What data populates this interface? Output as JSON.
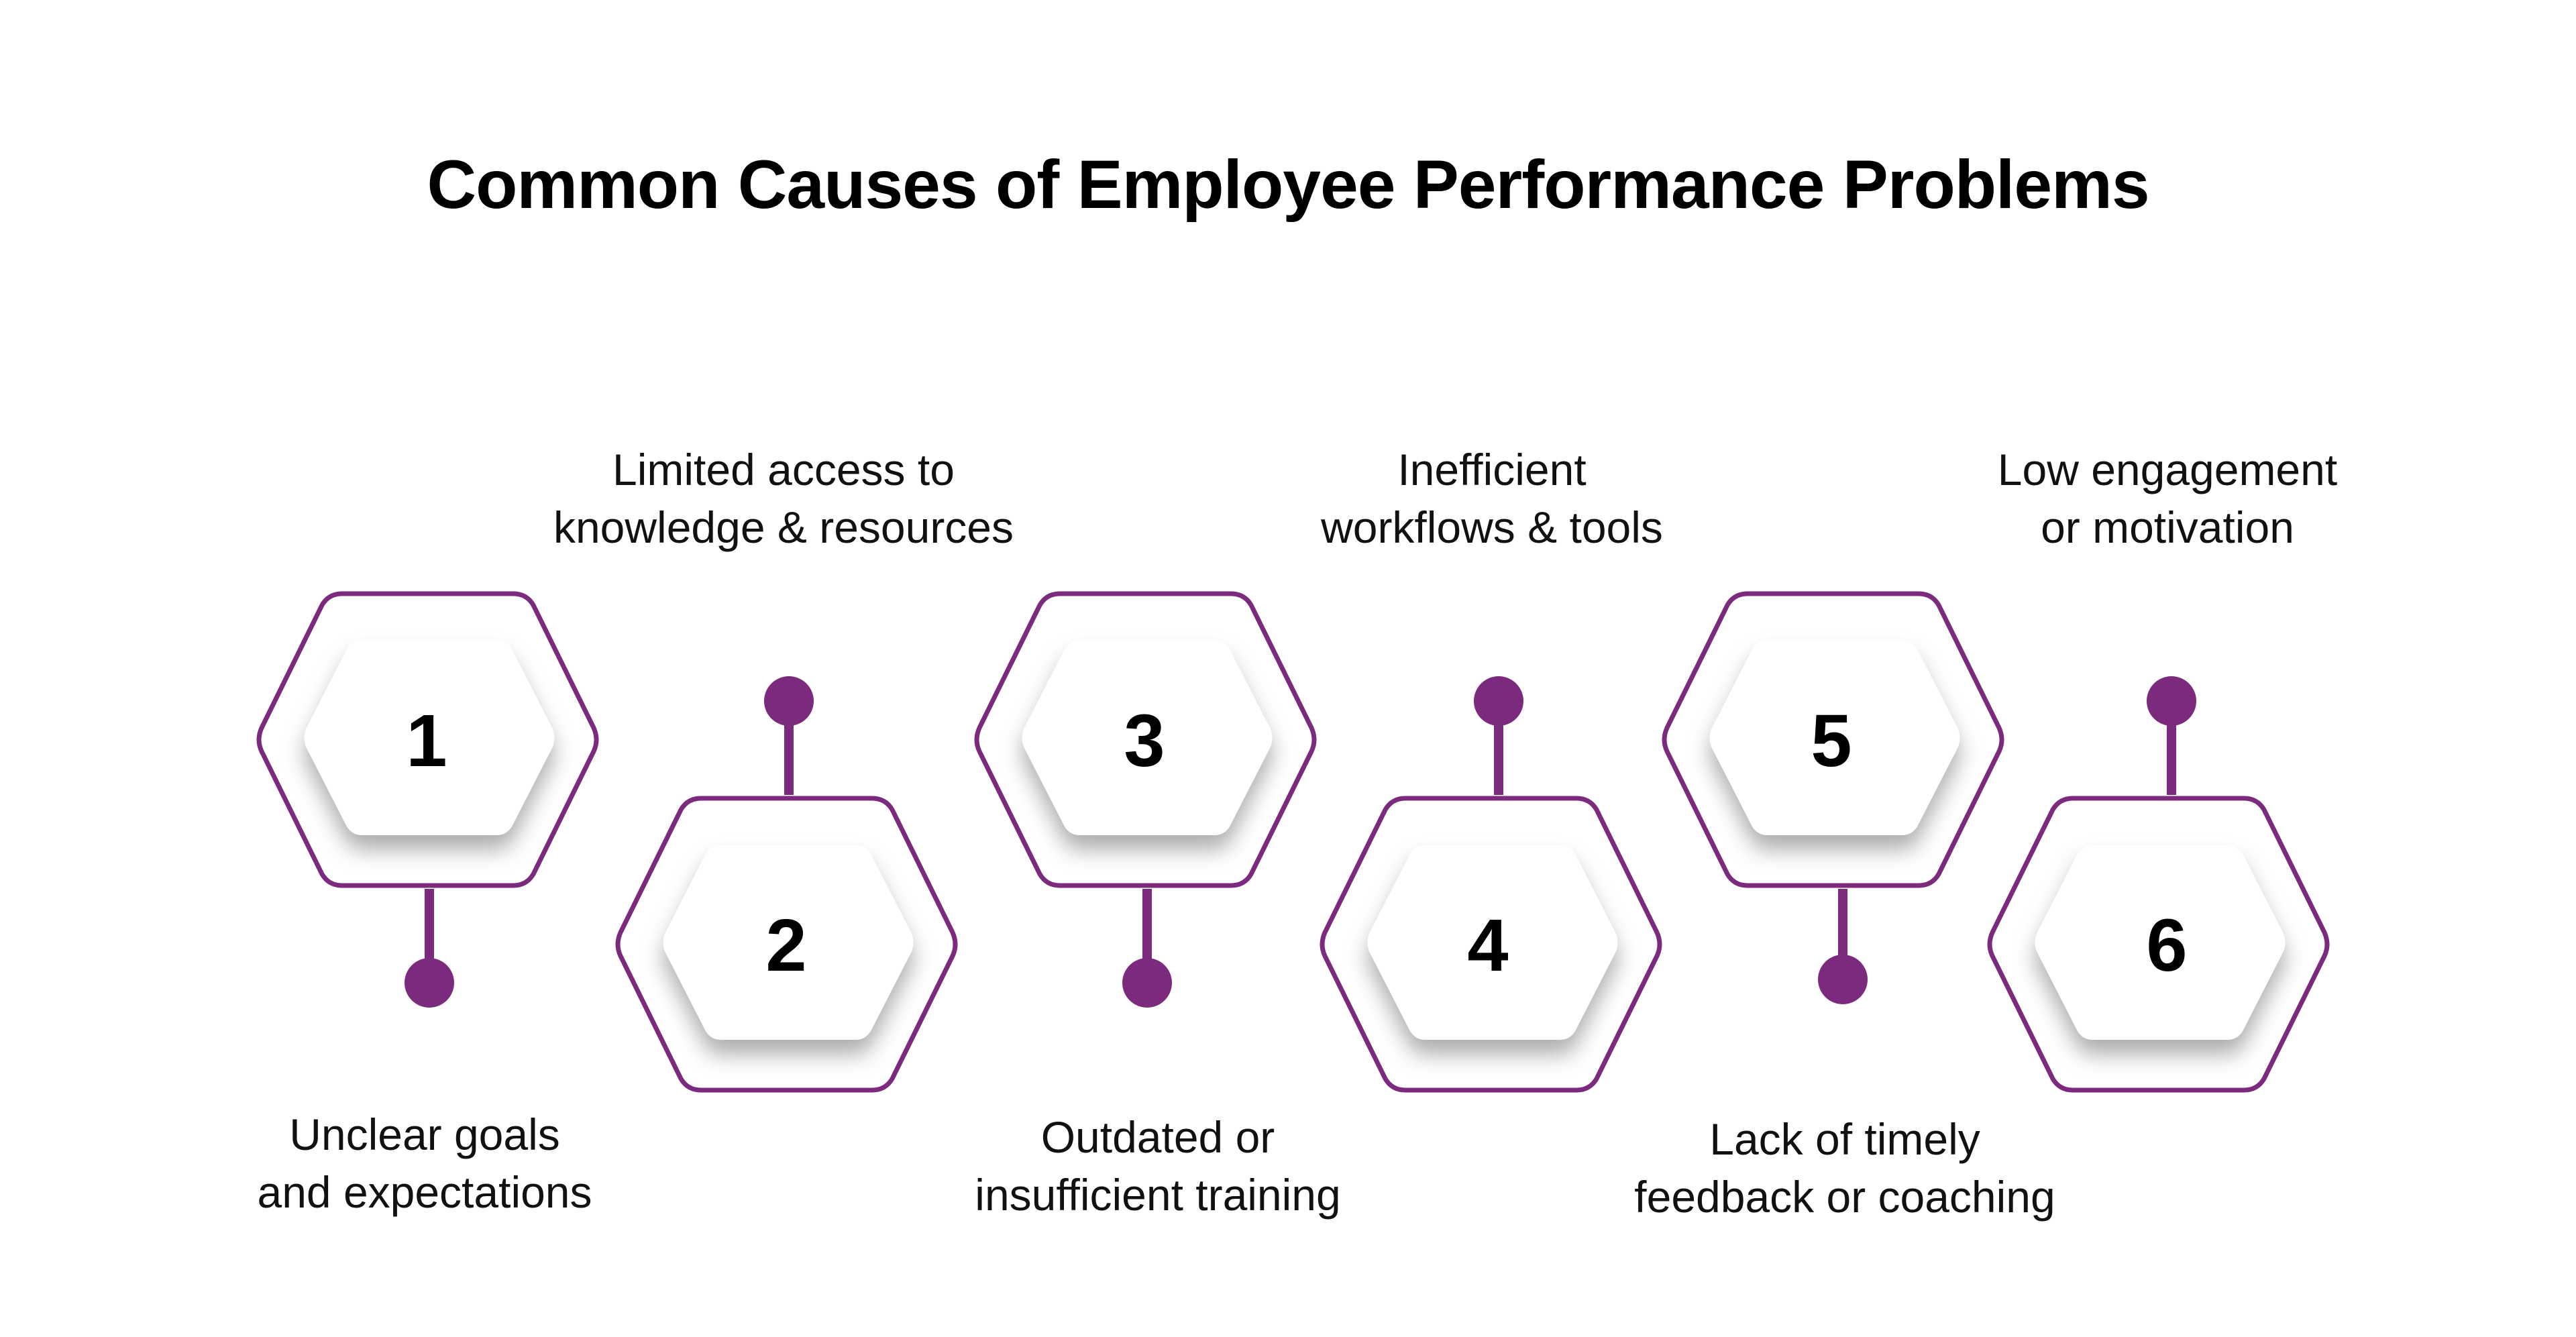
{
  "title": "Common Causes of Employee Performance Problems",
  "colors": {
    "accent": "#7b2a7e",
    "hex_fill": "#ffffff",
    "text": "#000000"
  },
  "steps": [
    {
      "number": "1",
      "label_line1": "Unclear goals",
      "label_line2": "and expectations"
    },
    {
      "number": "2",
      "label_line1": "Limited access to",
      "label_line2": "knowledge & resources"
    },
    {
      "number": "3",
      "label_line1": "Outdated or",
      "label_line2": "insufficient training"
    },
    {
      "number": "4",
      "label_line1": "Inefficient",
      "label_line2": "workflows & tools"
    },
    {
      "number": "5",
      "label_line1": "Lack of timely",
      "label_line2": "feedback or coaching"
    },
    {
      "number": "6",
      "label_line1": "Low engagement",
      "label_line2": "or motivation"
    }
  ]
}
